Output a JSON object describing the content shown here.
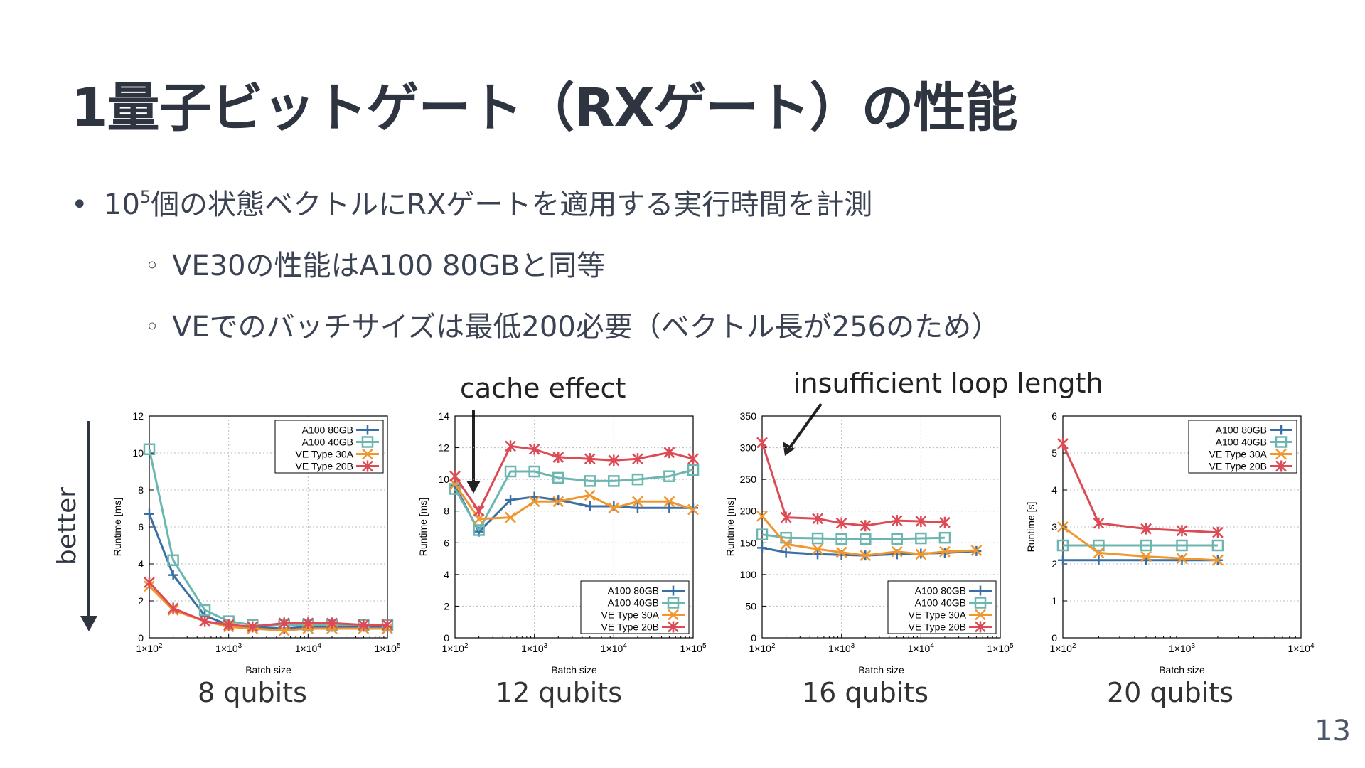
{
  "slide": {
    "title": "1量子ビットゲート（RXゲート）の性能",
    "bullet1_pre": "10",
    "bullet1_sup": "5",
    "bullet1_post": "個の状態ベクトルにRXゲートを適用する実行時間を計測",
    "sub1": "VE30の性能はA100 80GBと同等",
    "sub2": "VEでのバッチサイズは最低200必要（ベクトル長が256のため）",
    "annotation_cache": "cache effect",
    "annotation_loop": "insufficient loop length",
    "better_label": "better",
    "page_number": "13"
  },
  "colors": {
    "A100 80GB": "#3a6ea5",
    "A100 40GB": "#6bb6b0",
    "VE Type 30A": "#f0962e",
    "VE Type 20B": "#dc4b55"
  },
  "chart_data": [
    {
      "type": "line",
      "panel_label": "8 qubits",
      "xlabel": "Batch size",
      "ylabel": "Runtime [ms]",
      "x_scale": "log",
      "xlim": [
        100,
        100000
      ],
      "ylim": [
        0,
        12
      ],
      "xticks": [
        "1×10^2",
        "1×10^3",
        "1×10^4",
        "1×10^5"
      ],
      "yticks": [
        "0",
        "2",
        "4",
        "6",
        "8",
        "10",
        "12"
      ],
      "grid": true,
      "legend_position": "top-right",
      "series": [
        {
          "name": "A100 80GB",
          "marker": "plus",
          "x": [
            100,
            200,
            500,
            1000,
            2000,
            5000,
            10000,
            20000,
            50000,
            100000
          ],
          "y": [
            6.7,
            3.4,
            1.2,
            0.7,
            0.6,
            0.5,
            0.6,
            0.6,
            0.6,
            0.6
          ]
        },
        {
          "name": "A100 40GB",
          "marker": "square",
          "x": [
            100,
            200,
            500,
            1000,
            2000,
            5000,
            10000,
            20000,
            50000,
            100000
          ],
          "y": [
            10.2,
            4.2,
            1.5,
            0.9,
            0.7,
            0.7,
            0.7,
            0.7,
            0.7,
            0.7
          ]
        },
        {
          "name": "VE Type 30A",
          "marker": "x",
          "x": [
            100,
            200,
            500,
            1000,
            2000,
            5000,
            10000,
            20000,
            50000,
            100000
          ],
          "y": [
            2.8,
            1.5,
            0.9,
            0.6,
            0.5,
            0.4,
            0.5,
            0.5,
            0.5,
            0.5
          ]
        },
        {
          "name": "VE Type 20B",
          "marker": "star",
          "x": [
            100,
            200,
            500,
            1000,
            2000,
            5000,
            10000,
            20000,
            50000,
            100000
          ],
          "y": [
            3.0,
            1.6,
            0.9,
            0.7,
            0.6,
            0.8,
            0.8,
            0.8,
            0.7,
            0.7
          ]
        }
      ]
    },
    {
      "type": "line",
      "panel_label": "12 qubits",
      "xlabel": "Batch size",
      "ylabel": "Runtime [ms]",
      "x_scale": "log",
      "xlim": [
        100,
        100000
      ],
      "ylim": [
        0,
        14
      ],
      "xticks": [
        "1×10^2",
        "1×10^3",
        "1×10^4",
        "1×10^5"
      ],
      "yticks": [
        "0",
        "2",
        "4",
        "6",
        "8",
        "10",
        "12",
        "14"
      ],
      "grid": true,
      "legend_position": "bottom-right",
      "series": [
        {
          "name": "A100 80GB",
          "marker": "plus",
          "x": [
            100,
            200,
            500,
            1000,
            2000,
            5000,
            10000,
            20000,
            50000,
            100000
          ],
          "y": [
            9.6,
            6.7,
            8.7,
            8.9,
            8.7,
            8.3,
            8.3,
            8.2,
            8.2,
            8.2
          ]
        },
        {
          "name": "A100 40GB",
          "marker": "square",
          "x": [
            100,
            200,
            500,
            1000,
            2000,
            5000,
            10000,
            20000,
            50000,
            100000
          ],
          "y": [
            9.4,
            6.8,
            10.5,
            10.5,
            10.1,
            9.9,
            9.9,
            10.0,
            10.2,
            10.6
          ]
        },
        {
          "name": "VE Type 30A",
          "marker": "x",
          "x": [
            100,
            200,
            500,
            1000,
            2000,
            5000,
            10000,
            20000,
            50000,
            100000
          ],
          "y": [
            9.7,
            7.5,
            7.6,
            8.6,
            8.6,
            9.0,
            8.2,
            8.6,
            8.6,
            8.1
          ]
        },
        {
          "name": "VE Type 20B",
          "marker": "star",
          "x": [
            100,
            200,
            500,
            1000,
            2000,
            5000,
            10000,
            20000,
            50000,
            100000
          ],
          "y": [
            10.2,
            8.0,
            12.1,
            11.9,
            11.4,
            11.3,
            11.2,
            11.3,
            11.7,
            11.3
          ]
        }
      ]
    },
    {
      "type": "line",
      "panel_label": "16 qubits",
      "xlabel": "Batch size",
      "ylabel": "Runtime [ms]",
      "x_scale": "log",
      "xlim": [
        100,
        100000
      ],
      "ylim": [
        0,
        350
      ],
      "xticks": [
        "1×10^2",
        "1×10^3",
        "1×10^4",
        "1×10^5"
      ],
      "yticks": [
        "0",
        "50",
        "100",
        "150",
        "200",
        "250",
        "300",
        "350"
      ],
      "grid": true,
      "legend_position": "bottom-right",
      "series": [
        {
          "name": "A100 80GB",
          "marker": "plus",
          "x": [
            100,
            200,
            500,
            1000,
            2000,
            5000,
            10000,
            20000,
            50000
          ],
          "y": [
            142,
            135,
            132,
            131,
            130,
            132,
            133,
            134,
            137
          ]
        },
        {
          "name": "A100 40GB",
          "marker": "square",
          "x": [
            100,
            200,
            500,
            1000,
            2000,
            5000,
            10000,
            20000
          ],
          "y": [
            163,
            158,
            157,
            156,
            156,
            156,
            157,
            158
          ]
        },
        {
          "name": "VE Type 30A",
          "marker": "x",
          "x": [
            100,
            200,
            500,
            1000,
            2000,
            5000,
            10000,
            20000,
            50000
          ],
          "y": [
            192,
            148,
            140,
            135,
            130,
            136,
            132,
            136,
            138
          ]
        },
        {
          "name": "VE Type 20B",
          "marker": "star",
          "x": [
            100,
            200,
            500,
            1000,
            2000,
            5000,
            10000,
            20000
          ],
          "y": [
            308,
            190,
            188,
            181,
            177,
            185,
            184,
            182
          ]
        }
      ]
    },
    {
      "type": "line",
      "panel_label": "20 qubits",
      "xlabel": "Batch size",
      "ylabel": "Runtime [s]",
      "x_scale": "log",
      "xlim": [
        100,
        10000
      ],
      "ylim": [
        0,
        6
      ],
      "xticks": [
        "1×10^2",
        "1×10^3",
        "1×10^4"
      ],
      "yticks": [
        "0",
        "1",
        "2",
        "3",
        "4",
        "5",
        "6"
      ],
      "grid": true,
      "legend_position": "top-right",
      "series": [
        {
          "name": "A100 80GB",
          "marker": "plus",
          "x": [
            100,
            200,
            500,
            1000,
            2000
          ],
          "y": [
            2.1,
            2.1,
            2.1,
            2.1,
            2.1
          ]
        },
        {
          "name": "A100 40GB",
          "marker": "square",
          "x": [
            100,
            200,
            500,
            1000,
            2000
          ],
          "y": [
            2.5,
            2.5,
            2.5,
            2.5,
            2.5
          ]
        },
        {
          "name": "VE Type 30A",
          "marker": "x",
          "x": [
            100,
            200,
            500,
            1000,
            2000
          ],
          "y": [
            3.0,
            2.3,
            2.2,
            2.15,
            2.1
          ]
        },
        {
          "name": "VE Type 20B",
          "marker": "star",
          "x": [
            100,
            200,
            500,
            1000,
            2000
          ],
          "y": [
            5.25,
            3.1,
            2.95,
            2.9,
            2.85
          ]
        }
      ]
    }
  ]
}
